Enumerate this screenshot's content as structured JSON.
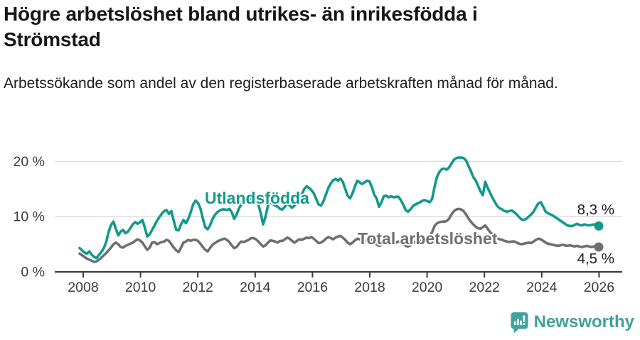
{
  "header": {
    "title": "Högre arbetslöshet bland utrikes- än inrikesfödda i Strömstad",
    "subtitle": "Arbetssökande som andel av den registerbaserade arbetskraften månad för månad."
  },
  "footer": {
    "brand": "Newsworthy",
    "brand_color": "#3FA19C",
    "logo_icon": "speech-bubble-bar-chart-exclamation-icon"
  },
  "chart_data": {
    "type": "line",
    "title": "Högre arbetslöshet bland utrikes- än inrikesfödda i Strömstad",
    "subtitle": "Arbetssökande som andel av den registerbaserade arbetskraften månad för månad.",
    "x_unit": "month",
    "x_start": "2008-01",
    "x_end": "2025-12",
    "x_ticks": [
      2008,
      2010,
      2012,
      2014,
      2016,
      2018,
      2020,
      2022,
      2024,
      2026
    ],
    "y_ticks": [
      {
        "value": 20,
        "label": "20 %"
      },
      {
        "value": 10,
        "label": "10 %"
      },
      {
        "value": 0,
        "label": "0 %"
      }
    ],
    "ylim": [
      0,
      22
    ],
    "grid": "horizontal",
    "gridline_color": "#DBDBDB",
    "axis_color": "#3C3C3C",
    "series": [
      {
        "name": "Utlandsfödda",
        "color": "#12998C",
        "end_label": "8,3 %",
        "end_value": 8.3,
        "values": [
          4.3,
          3.9,
          3.5,
          3.3,
          3.7,
          3.1,
          2.7,
          2.5,
          3.1,
          3.6,
          4.3,
          5.4,
          7.2,
          8.5,
          9.1,
          7.8,
          6.6,
          7.3,
          7.6,
          7.0,
          7.3,
          7.9,
          8.6,
          9.0,
          8.7,
          9.0,
          9.4,
          8.0,
          6.4,
          6.8,
          7.6,
          8.4,
          9.2,
          9.9,
          10.5,
          11.0,
          11.2,
          10.5,
          11.0,
          9.2,
          7.6,
          7.5,
          8.6,
          9.4,
          8.8,
          9.6,
          10.8,
          12.2,
          12.9,
          12.5,
          11.5,
          9.7,
          8.1,
          7.7,
          8.4,
          9.5,
          10.3,
          10.8,
          11.1,
          11.3,
          11.3,
          11.2,
          11.4,
          10.8,
          9.6,
          10.4,
          11.5,
          12.2,
          12.6,
          13.0,
          13.5,
          13.2,
          13.0,
          12.8,
          12.2,
          10.6,
          8.6,
          10.0,
          12.0,
          12.6,
          12.3,
          12.0,
          11.8,
          11.4,
          11.3,
          11.8,
          12.4,
          12.0,
          11.6,
          12.0,
          12.6,
          13.2,
          14.0,
          15.0,
          15.5,
          15.2,
          14.8,
          14.2,
          13.2,
          12.2,
          12.0,
          12.8,
          14.0,
          15.2,
          16.0,
          16.6,
          16.8,
          16.5,
          16.9,
          16.3,
          15.0,
          13.8,
          13.3,
          14.2,
          15.5,
          16.5,
          16.2,
          15.9,
          16.2,
          16.5,
          16.4,
          15.4,
          14.0,
          13.3,
          11.8,
          12.6,
          13.7,
          13.8,
          13.5,
          13.7,
          13.5,
          13.6,
          13.6,
          13.0,
          12.2,
          11.2,
          10.9,
          11.3,
          11.9,
          12.2,
          12.4,
          12.6,
          12.9,
          13.0,
          12.8,
          12.6,
          13.2,
          15.4,
          17.2,
          18.1,
          18.6,
          18.7,
          18.5,
          18.9,
          19.6,
          20.3,
          20.6,
          20.7,
          20.7,
          20.6,
          20.2,
          19.2,
          18.3,
          17.2,
          16.6,
          15.6,
          14.6,
          13.9,
          16.3,
          15.2,
          14.3,
          13.4,
          12.6,
          11.9,
          11.5,
          11.3,
          11.0,
          10.9,
          11.0,
          11.1,
          10.8,
          10.4,
          9.9,
          9.5,
          9.4,
          9.6,
          10.0,
          10.4,
          10.9,
          11.7,
          12.4,
          12.6,
          11.8,
          10.9,
          10.6,
          10.4,
          10.2,
          9.9,
          9.6,
          9.3,
          9.0,
          8.7,
          8.4,
          8.3,
          8.3,
          8.5,
          8.7,
          8.5,
          8.4,
          8.6,
          8.5,
          8.4,
          8.5,
          8.6,
          8.4,
          8.3
        ]
      },
      {
        "name": "Total arbetslöshet",
        "color": "#6F6F6F",
        "end_label": "4,5 %",
        "end_value": 4.5,
        "values": [
          3.3,
          3.0,
          2.7,
          2.4,
          2.2,
          2.0,
          1.8,
          1.9,
          2.2,
          2.6,
          3.0,
          3.4,
          3.9,
          4.4,
          5.0,
          5.3,
          5.0,
          4.5,
          4.4,
          4.7,
          4.9,
          5.1,
          5.3,
          5.6,
          5.9,
          5.7,
          5.3,
          4.6,
          4.0,
          4.4,
          5.3,
          5.4,
          5.0,
          5.2,
          5.4,
          5.5,
          5.8,
          5.6,
          5.0,
          4.4,
          3.9,
          3.6,
          4.4,
          5.3,
          5.5,
          5.8,
          5.6,
          5.8,
          5.8,
          5.6,
          5.1,
          4.5,
          4.0,
          3.7,
          4.3,
          4.9,
          5.2,
          5.5,
          5.7,
          5.9,
          6.0,
          5.8,
          5.4,
          4.8,
          4.3,
          4.5,
          5.1,
          5.5,
          5.4,
          5.6,
          5.8,
          6.1,
          6.1,
          5.9,
          5.5,
          5.0,
          4.6,
          4.8,
          5.3,
          5.7,
          5.6,
          5.5,
          5.3,
          5.6,
          5.6,
          5.9,
          6.2,
          6.0,
          5.6,
          5.3,
          5.6,
          5.9,
          5.8,
          6.0,
          6.2,
          6.1,
          6.3,
          6.0,
          5.6,
          5.2,
          5.3,
          5.6,
          6.0,
          6.3,
          6.1,
          5.9,
          6.2,
          6.4,
          6.5,
          6.2,
          5.8,
          5.3,
          5.0,
          5.3,
          5.7,
          6.0,
          5.9,
          5.7,
          5.5,
          5.8,
          6.0,
          5.8,
          5.4,
          5.0,
          4.7,
          4.9,
          5.3,
          5.5,
          5.4,
          5.2,
          5.1,
          5.3,
          5.5,
          5.3,
          5.0,
          4.7,
          4.6,
          4.8,
          5.2,
          5.4,
          5.3,
          5.5,
          5.7,
          6.0,
          6.3,
          6.5,
          7.2,
          8.3,
          8.8,
          9.0,
          9.1,
          9.1,
          9.2,
          9.6,
          10.4,
          11.0,
          11.3,
          11.4,
          11.3,
          11.0,
          10.4,
          9.7,
          9.1,
          8.6,
          8.2,
          7.9,
          7.8,
          8.1,
          8.4,
          7.8,
          7.2,
          6.8,
          6.4,
          6.1,
          5.9,
          5.8,
          5.6,
          5.5,
          5.4,
          5.5,
          5.5,
          5.3,
          5.1,
          5.0,
          5.1,
          5.2,
          5.3,
          5.2,
          5.5,
          5.8,
          6.0,
          5.9,
          5.6,
          5.3,
          5.1,
          5.0,
          4.9,
          4.8,
          4.7,
          4.8,
          4.9,
          4.8,
          4.7,
          4.8,
          4.7,
          4.6,
          4.7,
          4.6,
          4.5,
          4.6,
          4.7,
          4.6,
          4.5,
          4.6,
          4.5,
          4.5
        ]
      }
    ]
  }
}
